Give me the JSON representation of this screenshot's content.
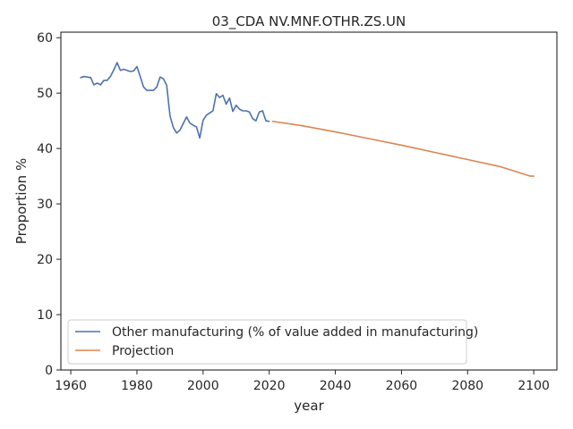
{
  "chart_data": {
    "type": "line",
    "title": "03_CDA NV.MNF.OTHR.ZS.UN",
    "xlabel": "year",
    "ylabel": "Proportion %",
    "xlim": [
      1957,
      2107
    ],
    "ylim": [
      0,
      61
    ],
    "x_ticks": [
      1960,
      1980,
      2000,
      2020,
      2040,
      2060,
      2080,
      2100
    ],
    "y_ticks": [
      0,
      10,
      20,
      30,
      40,
      50,
      60
    ],
    "grid": false,
    "legend_position": "lower-left",
    "series": [
      {
        "name": "Other manufacturing (% of value added in manufacturing)",
        "color": "#4c72b0",
        "x": [
          1963,
          1964,
          1965,
          1966,
          1967,
          1968,
          1969,
          1970,
          1971,
          1972,
          1973,
          1974,
          1975,
          1976,
          1977,
          1978,
          1979,
          1980,
          1981,
          1982,
          1983,
          1984,
          1985,
          1986,
          1987,
          1988,
          1989,
          1990,
          1991,
          1992,
          1993,
          1994,
          1995,
          1996,
          1997,
          1998,
          1999,
          2000,
          2001,
          2002,
          2003,
          2004,
          2005,
          2006,
          2007,
          2008,
          2009,
          2010,
          2011,
          2012,
          2013,
          2014,
          2015,
          2016,
          2017,
          2018,
          2019,
          2020
        ],
        "y": [
          52.8,
          53.0,
          52.9,
          52.8,
          51.5,
          51.8,
          51.5,
          52.3,
          52.3,
          53.0,
          54.2,
          55.5,
          54.1,
          54.3,
          54.1,
          53.9,
          54.0,
          54.8,
          53.0,
          51.1,
          50.5,
          50.5,
          50.5,
          51.1,
          52.9,
          52.6,
          51.4,
          45.9,
          43.8,
          42.8,
          43.3,
          44.5,
          45.7,
          44.6,
          44.2,
          43.9,
          41.9,
          45.1,
          46.0,
          46.4,
          46.8,
          49.9,
          49.2,
          49.6,
          48.0,
          49.1,
          46.7,
          47.8,
          47.1,
          46.8,
          46.8,
          46.6,
          45.4,
          45.0,
          46.6,
          46.8,
          45.0,
          44.9
        ]
      },
      {
        "name": "Projection",
        "color": "#dd8452",
        "x": [
          2021,
          2030,
          2040,
          2050,
          2060,
          2070,
          2080,
          2090,
          2099,
          2100
        ],
        "y": [
          44.9,
          44.1,
          43.0,
          41.8,
          40.6,
          39.3,
          38.0,
          36.7,
          35.0,
          35.0
        ]
      }
    ]
  }
}
